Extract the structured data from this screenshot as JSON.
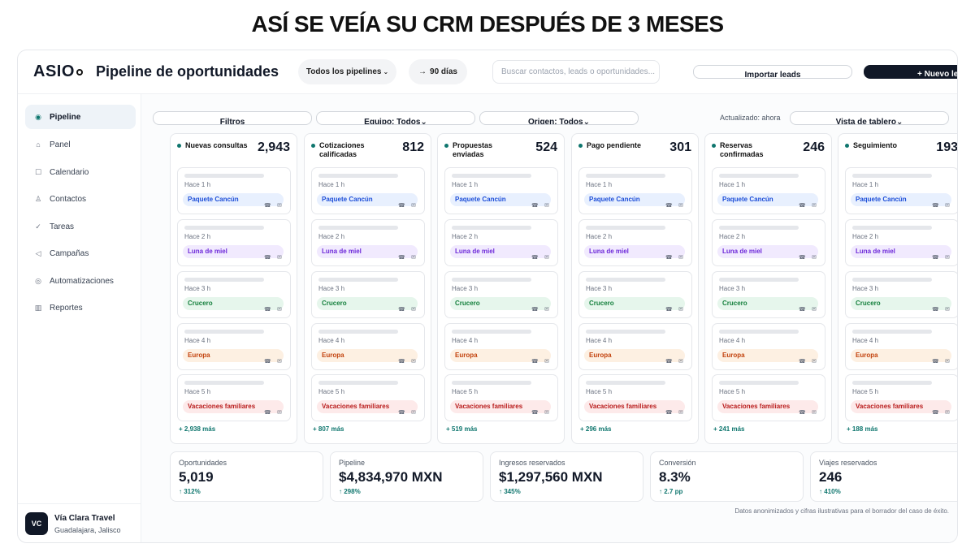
{
  "headline": "ASÍ SE VEÍA SU CRM DESPUÉS DE 3 MESES",
  "topbar": {
    "logo": "ASIO",
    "title": "Pipeline de oportunidades",
    "pipeline_filter": "Todos los pipelines",
    "range_filter": "90 días",
    "search_placeholder": "Buscar contactos, leads o oportunidades...",
    "import_button": "Importar leads",
    "new_button": "+ Nuevo le"
  },
  "sidebar": {
    "items": [
      {
        "label": "Pipeline",
        "icon": "◉",
        "active": true
      },
      {
        "label": "Panel",
        "icon": "⌂",
        "active": false
      },
      {
        "label": "Calendario",
        "icon": "☐",
        "active": false
      },
      {
        "label": "Contactos",
        "icon": "♙",
        "active": false
      },
      {
        "label": "Tareas",
        "icon": "✓",
        "active": false
      },
      {
        "label": "Campañas",
        "icon": "◁",
        "active": false
      },
      {
        "label": "Automatizaciones",
        "icon": "◎",
        "active": false
      },
      {
        "label": "Reportes",
        "icon": "▥",
        "active": false
      }
    ],
    "account": {
      "initials": "VC",
      "name": "Vía Clara Travel",
      "location": "Guadalajara, Jalisco"
    }
  },
  "filters": {
    "filters_label": "Filtros",
    "team_label": "Equipo: Todos",
    "origin_label": "Origen: Todos",
    "updated": "Actualizado: ahora",
    "view_label": "Vista de tablero"
  },
  "tags": [
    {
      "label": "Paquete Cancún",
      "bg": "#e8f0fe",
      "fg": "#1d4ed8"
    },
    {
      "label": "Luna de miel",
      "bg": "#f1eafe",
      "fg": "#6d28d9"
    },
    {
      "label": "Crucero",
      "bg": "#e6f6ec",
      "fg": "#15803d"
    },
    {
      "label": "Europa",
      "bg": "#fdf0e2",
      "fg": "#c2410c"
    },
    {
      "label": "Vacaciones familiares",
      "bg": "#fdeaea",
      "fg": "#b91c1c"
    }
  ],
  "card_times": [
    "Hace 1 h",
    "Hace 2 h",
    "Hace 3 h",
    "Hace 4 h",
    "Hace 5 h"
  ],
  "columns": [
    {
      "title": "Nuevas consultas",
      "count": "2,943",
      "more": "+ 2,938 más"
    },
    {
      "title": "Cotizaciones calificadas",
      "count": "812",
      "more": "+ 807 más"
    },
    {
      "title": "Propuestas enviadas",
      "count": "524",
      "more": "+ 519 más"
    },
    {
      "title": "Pago pendiente",
      "count": "301",
      "more": "+ 296 más"
    },
    {
      "title": "Reservas confirmadas",
      "count": "246",
      "more": "+ 241 más"
    },
    {
      "title": "Seguimiento",
      "count": "193",
      "more": "+ 188 más"
    }
  ],
  "kpis": [
    {
      "label": "Oportunidades",
      "value": "5,019",
      "delta": "↑ 312%"
    },
    {
      "label": "Pipeline",
      "value": "$4,834,970 MXN",
      "delta": "↑ 298%"
    },
    {
      "label": "Ingresos reservados",
      "value": "$1,297,560 MXN",
      "delta": "↑ 345%"
    },
    {
      "label": "Conversión",
      "value": "8.3%",
      "delta": "↑ 2.7 pp"
    },
    {
      "label": "Viajes reservados",
      "value": "246",
      "delta": "↑ 410%"
    }
  ],
  "footnote": "Datos anonimizados y cifras ilustrativas para el borrador del caso de éxito."
}
